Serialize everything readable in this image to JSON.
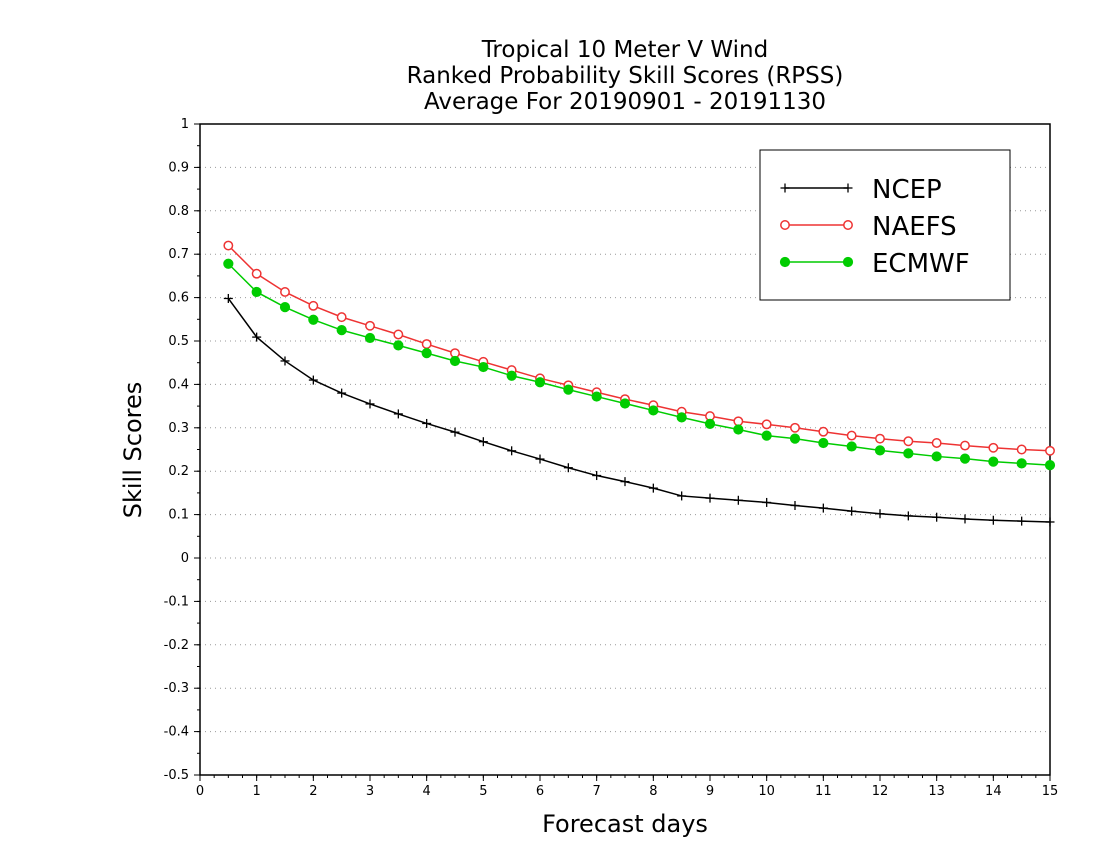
{
  "chart_data": {
    "type": "line",
    "title_lines": [
      "Tropical 10 Meter V Wind",
      "Ranked Probability Skill Scores (RPSS)",
      "Average For 20190901 - 20191130"
    ],
    "xlabel": "Forecast days",
    "ylabel": "Skill Scores",
    "xlim": [
      0,
      15
    ],
    "ylim": [
      -0.5,
      1
    ],
    "x_ticks": [
      "0",
      "1",
      "2",
      "3",
      "4",
      "5",
      "6",
      "7",
      "8",
      "9",
      "10",
      "11",
      "12",
      "13",
      "14",
      "15"
    ],
    "y_ticks": [
      "1",
      "0.9",
      "0.8",
      "0.7",
      "0.6",
      "0.5",
      "0.4",
      "0.3",
      "0.2",
      "0.1",
      "0",
      "-0.1",
      "-0.2",
      "-0.3",
      "-0.4",
      "-0.5"
    ],
    "grid": "horizontal dotted",
    "legend_position": "top-right",
    "x": [
      0.5,
      1,
      1.5,
      2,
      2.5,
      3,
      3.5,
      4,
      4.5,
      5,
      5.5,
      6,
      6.5,
      7,
      7.5,
      8,
      8.5,
      9,
      9.5,
      10,
      10.5,
      11,
      11.5,
      12,
      12.5,
      13,
      13.5,
      14,
      14.5,
      15
    ],
    "series": [
      {
        "name": "NCEP",
        "color": "#000000",
        "marker": "plus",
        "values": [
          0.598,
          0.509,
          0.454,
          0.41,
          0.38,
          0.355,
          0.332,
          0.31,
          0.29,
          0.268,
          0.247,
          0.228,
          0.208,
          0.19,
          0.176,
          0.161,
          0.143,
          0.138,
          0.133,
          0.128,
          0.121,
          0.115,
          0.108,
          0.102,
          0.097,
          0.094,
          0.09,
          0.087,
          0.085,
          0.083
        ]
      },
      {
        "name": "NAEFS",
        "color": "#ee3333",
        "marker": "open-circle",
        "values": [
          0.72,
          0.655,
          0.613,
          0.581,
          0.555,
          0.535,
          0.515,
          0.493,
          0.472,
          0.452,
          0.433,
          0.414,
          0.398,
          0.382,
          0.366,
          0.352,
          0.337,
          0.327,
          0.315,
          0.308,
          0.3,
          0.291,
          0.282,
          0.275,
          0.269,
          0.265,
          0.259,
          0.254,
          0.25,
          0.247
        ]
      },
      {
        "name": "ECMWF",
        "color": "#00cc00",
        "marker": "filled-circle",
        "values": [
          0.678,
          0.613,
          0.578,
          0.549,
          0.525,
          0.507,
          0.49,
          0.472,
          0.454,
          0.44,
          0.42,
          0.405,
          0.388,
          0.372,
          0.356,
          0.34,
          0.324,
          0.309,
          0.296,
          0.282,
          0.275,
          0.265,
          0.257,
          0.248,
          0.241,
          0.234,
          0.229,
          0.222,
          0.218,
          0.214
        ]
      }
    ]
  }
}
